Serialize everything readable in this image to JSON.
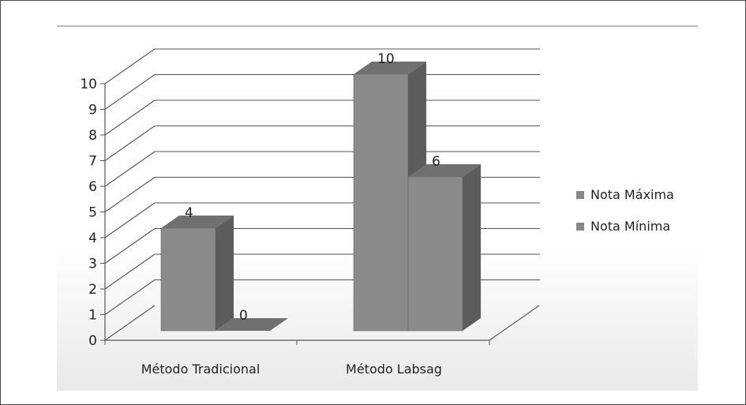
{
  "chart_data": {
    "type": "bar",
    "style": "3d-clustered",
    "categories": [
      "Método Tradicional",
      "Método Labsag"
    ],
    "series": [
      {
        "name": "Nota Máxima",
        "values": [
          4,
          10
        ],
        "color": "#888888"
      },
      {
        "name": "Nota Mínima",
        "values": [
          0,
          6
        ],
        "color": "#888888"
      }
    ],
    "ylim": [
      0,
      10
    ],
    "yticks": [
      "0",
      "1",
      "2",
      "3",
      "4",
      "5",
      "6",
      "7",
      "8",
      "9",
      "10"
    ],
    "grid": true,
    "legend_position": "right",
    "data_labels": true
  },
  "colors": {
    "bar_front": "#8a8a8a",
    "bar_side": "#5c5c5c",
    "bar_top": "#707070",
    "gridline": "#555555",
    "background_top": "#ffffff",
    "background_bottom": "#e9e9e9"
  }
}
